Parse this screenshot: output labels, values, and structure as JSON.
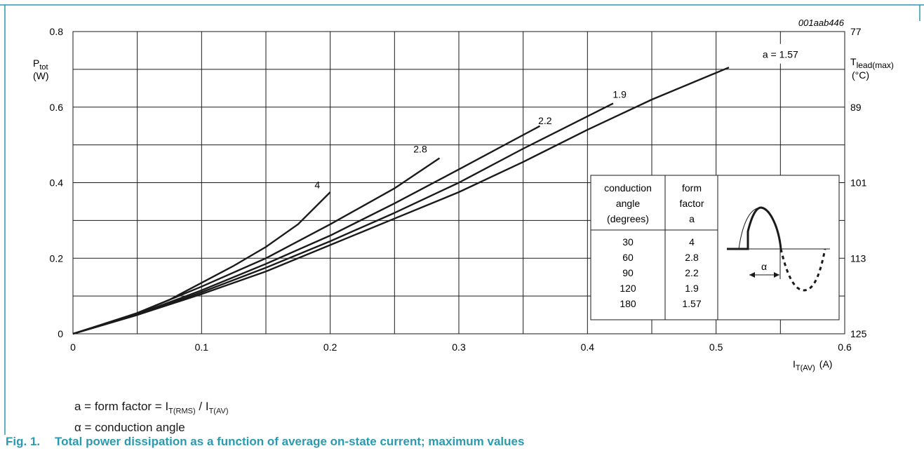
{
  "colors": {
    "frame": "#2a9ab0",
    "caption": "#2a9ab0",
    "ink": "#1a1a1a",
    "grid": "#1a1a1a"
  },
  "figure": {
    "id_label": "001aab446",
    "number": "Fig. 1.",
    "title": "Total power dissipation as a function of average on-state current; maximum values"
  },
  "notes": {
    "form_factor_prefix": "a = form factor = I",
    "form_factor_sub1": "T(RMS)",
    "form_factor_mid": " / I",
    "form_factor_sub2": "T(AV)",
    "alpha_line": "α = conduction angle"
  },
  "inset_table": {
    "col1_header": [
      "conduction",
      "angle",
      "(degrees)"
    ],
    "col2_header": [
      "form",
      "factor",
      "a"
    ],
    "rows": [
      [
        "30",
        "4"
      ],
      [
        "60",
        "2.8"
      ],
      [
        "90",
        "2.2"
      ],
      [
        "120",
        "1.9"
      ],
      [
        "180",
        "1.57"
      ]
    ],
    "alpha_symbol": "α"
  },
  "chart_data": {
    "type": "line",
    "x_axis": {
      "label_main": "I",
      "label_sub": "T(AV)",
      "label_unit": "(A)",
      "range": [
        0,
        0.6
      ],
      "ticks": [
        "0",
        "0.1",
        "0.2",
        "0.3",
        "0.4",
        "0.5",
        "0.6"
      ]
    },
    "y_axis": {
      "label_main": "P",
      "label_sub": "tot",
      "label_unit": "(W)",
      "range": [
        0,
        0.8
      ],
      "ticks": [
        "0",
        "0.2",
        "0.4",
        "0.6",
        "0.8"
      ]
    },
    "y2_axis": {
      "label_main": "T",
      "label_sub": "lead(max)",
      "label_unit": "(°C)",
      "range": [
        125,
        77
      ],
      "ticks": [
        "125",
        "113",
        "101",
        "89",
        "77"
      ]
    },
    "grid": true,
    "series": [
      {
        "name": "4",
        "label_at": [
          0.19,
          0.385
        ],
        "points": [
          [
            0,
            0
          ],
          [
            0.025,
            0.025
          ],
          [
            0.05,
            0.055
          ],
          [
            0.075,
            0.09
          ],
          [
            0.1,
            0.135
          ],
          [
            0.125,
            0.18
          ],
          [
            0.15,
            0.23
          ],
          [
            0.175,
            0.29
          ],
          [
            0.2,
            0.375
          ]
        ]
      },
      {
        "name": "2.8",
        "label_at": [
          0.27,
          0.48
        ],
        "points": [
          [
            0,
            0
          ],
          [
            0.05,
            0.055
          ],
          [
            0.1,
            0.125
          ],
          [
            0.15,
            0.2
          ],
          [
            0.2,
            0.29
          ],
          [
            0.25,
            0.385
          ],
          [
            0.285,
            0.465
          ]
        ]
      },
      {
        "name": "2.2",
        "label_at": [
          0.367,
          0.555
        ],
        "points": [
          [
            0,
            0
          ],
          [
            0.05,
            0.052
          ],
          [
            0.1,
            0.115
          ],
          [
            0.15,
            0.185
          ],
          [
            0.2,
            0.26
          ],
          [
            0.25,
            0.345
          ],
          [
            0.3,
            0.435
          ],
          [
            0.363,
            0.55
          ]
        ]
      },
      {
        "name": "1.9",
        "label_at": [
          0.425,
          0.625
        ],
        "points": [
          [
            0,
            0
          ],
          [
            0.05,
            0.05
          ],
          [
            0.1,
            0.11
          ],
          [
            0.15,
            0.175
          ],
          [
            0.2,
            0.245
          ],
          [
            0.25,
            0.32
          ],
          [
            0.3,
            0.4
          ],
          [
            0.35,
            0.49
          ],
          [
            0.42,
            0.61
          ]
        ]
      },
      {
        "name": "a = 1.57",
        "label_at": [
          0.55,
          0.73
        ],
        "points": [
          [
            0,
            0
          ],
          [
            0.05,
            0.05
          ],
          [
            0.1,
            0.105
          ],
          [
            0.15,
            0.165
          ],
          [
            0.2,
            0.235
          ],
          [
            0.25,
            0.305
          ],
          [
            0.3,
            0.375
          ],
          [
            0.35,
            0.455
          ],
          [
            0.4,
            0.54
          ],
          [
            0.45,
            0.62
          ],
          [
            0.51,
            0.705
          ]
        ]
      }
    ]
  }
}
